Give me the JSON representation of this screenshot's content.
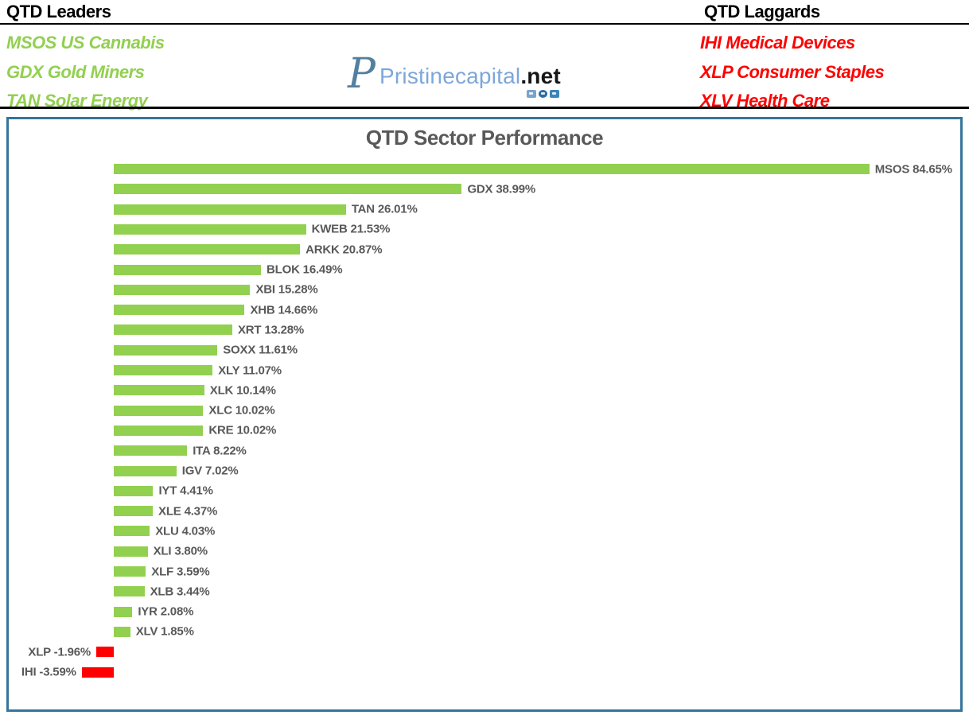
{
  "header": {
    "leaders": {
      "title": "QTD Leaders",
      "items": [
        "MSOS US Cannabis",
        "GDX Gold Miners",
        "TAN Solar Energy"
      ],
      "color": "#92d050"
    },
    "laggards": {
      "title": "QTD Laggards",
      "items": [
        "IHI Medical Devices",
        "XLP Consumer Staples",
        "XLV Health Care"
      ],
      "color": "#ff0000"
    },
    "logo": {
      "monogram": "P",
      "name": "Pristinecapital",
      "tld": ".net",
      "icon_names": [
        "video-icon",
        "discord-icon",
        "tv-icon"
      ]
    }
  },
  "chart_data": {
    "type": "bar",
    "orientation": "horizontal",
    "title": "QTD Sector Performance",
    "categories": [
      "MSOS",
      "GDX",
      "TAN",
      "KWEB",
      "ARKK",
      "BLOK",
      "XBI",
      "XHB",
      "XRT",
      "SOXX",
      "XLY",
      "XLK",
      "XLC",
      "KRE",
      "ITA",
      "IGV",
      "IYT",
      "XLE",
      "XLU",
      "XLI",
      "XLF",
      "XLB",
      "IYR",
      "XLV",
      "XLP",
      "IHI"
    ],
    "values": [
      84.65,
      38.99,
      26.01,
      21.53,
      20.87,
      16.49,
      15.28,
      14.66,
      13.28,
      11.61,
      11.07,
      10.14,
      10.02,
      10.02,
      8.22,
      7.02,
      4.41,
      4.37,
      4.03,
      3.8,
      3.59,
      3.44,
      2.08,
      1.85,
      -1.96,
      -3.59
    ],
    "labels": [
      "MSOS 84.65%",
      "GDX 38.99%",
      "TAN 26.01%",
      "KWEB 21.53%",
      "ARKK 20.87%",
      "BLOK 16.49%",
      "XBI 15.28%",
      "XHB 14.66%",
      "XRT 13.28%",
      "SOXX 11.61%",
      "XLY 11.07%",
      "XLK 10.14%",
      "XLC 10.02%",
      "KRE 10.02%",
      "ITA 8.22%",
      "IGV 7.02%",
      "IYT 4.41%",
      "XLE 4.37%",
      "XLU 4.03%",
      "XLI 3.80%",
      "XLF 3.59%",
      "XLB 3.44%",
      "IYR 2.08%",
      "XLV 1.85%",
      "XLP -1.96%",
      "IHI -3.59%"
    ],
    "positive_color": "#92d050",
    "negative_color": "#ff0000",
    "xlim": [
      -12,
      95
    ],
    "grid": false,
    "legend": "none",
    "value_label_color": "#595959",
    "title_color": "#595959"
  },
  "colors": {
    "chart_border": "#36749c",
    "header_rule": "#000000",
    "logo_text_blue": "#7da7d9",
    "logo_monogram_blue": "#53809f",
    "logo_tld_black": "#161616"
  }
}
